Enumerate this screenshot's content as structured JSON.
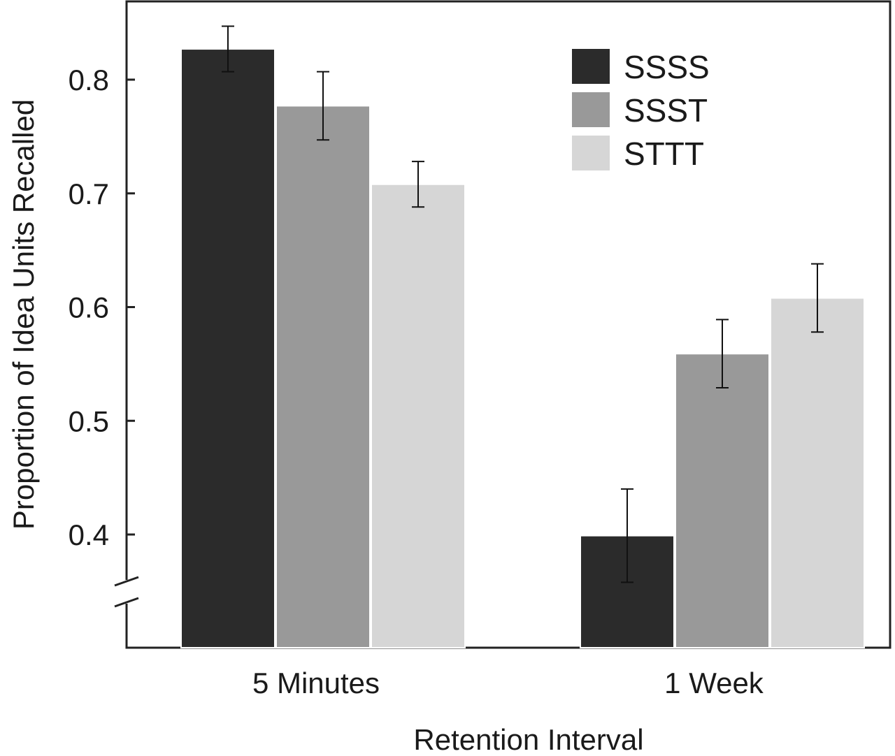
{
  "chart_data": {
    "type": "bar",
    "title": "",
    "xlabel": "Retention Interval",
    "ylabel": "Proportion of Idea Units Recalled",
    "categories": [
      "5 Minutes",
      "1 Week"
    ],
    "ylim": [
      0.3,
      0.86
    ],
    "yticks": [
      0.4,
      0.5,
      0.6,
      0.7,
      0.8
    ],
    "ytick_labels": [
      "0.4",
      "0.5",
      "0.6",
      "0.7",
      "0.8"
    ],
    "axis_break": true,
    "legend_position": "top-right",
    "series": [
      {
        "name": "SSSS",
        "color": "#2b2b2b",
        "values": [
          0.827,
          0.399
        ],
        "errors": [
          0.02,
          0.041
        ]
      },
      {
        "name": "SSST",
        "color": "#999999",
        "values": [
          0.777,
          0.559
        ],
        "errors": [
          0.03,
          0.03
        ]
      },
      {
        "name": "STTT",
        "color": "#d6d6d6",
        "values": [
          0.708,
          0.608
        ],
        "errors": [
          0.02,
          0.03
        ]
      }
    ]
  }
}
